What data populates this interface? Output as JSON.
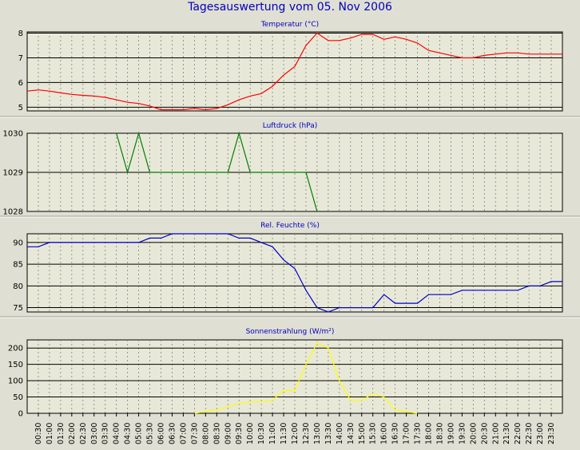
{
  "title": "Tagesauswertung vom 05. Nov 2006",
  "colors": {
    "background": "#e0dfd3",
    "plot_area": "#e8e8d8",
    "grid": "#808080",
    "title": "#0000c0",
    "temperature": "#ff0000",
    "pressure": "#008000",
    "humidity": "#0000cc",
    "radiation": "#ffff00"
  },
  "x_ticks": [
    "00:30",
    "01:00",
    "01:30",
    "02:00",
    "02:30",
    "03:00",
    "03:30",
    "04:00",
    "04:30",
    "05:00",
    "05:30",
    "06:00",
    "06:30",
    "07:00",
    "07:30",
    "08:00",
    "08:30",
    "09:00",
    "09:30",
    "10:00",
    "10:30",
    "11:00",
    "11:30",
    "12:00",
    "12:30",
    "13:00",
    "13:30",
    "14:00",
    "14:30",
    "15:00",
    "15:30",
    "16:00",
    "16:30",
    "17:00",
    "17:30",
    "18:00",
    "18:30",
    "19:00",
    "19:30",
    "20:00",
    "20:30",
    "21:00",
    "21:30",
    "22:00",
    "22:30",
    "23:00",
    "23:30"
  ],
  "chart_data": [
    {
      "type": "line",
      "title": "Temperatur (°C)",
      "series": [
        {
          "color": "#ff0000",
          "x": [
            "00:00",
            "00:30",
            "01:00",
            "01:30",
            "02:00",
            "02:30",
            "03:00",
            "03:30",
            "04:00",
            "04:30",
            "05:00",
            "05:30",
            "06:00",
            "06:30",
            "07:00",
            "07:30",
            "08:00",
            "08:30",
            "09:00",
            "09:30",
            "10:00",
            "10:30",
            "11:00",
            "11:30",
            "12:00",
            "12:30",
            "13:00",
            "13:30",
            "14:00",
            "14:30",
            "15:00",
            "15:30",
            "16:00",
            "16:30",
            "17:00",
            "17:30",
            "18:00",
            "18:30",
            "19:00",
            "19:30",
            "20:00",
            "20:30",
            "21:00",
            "21:30",
            "22:00",
            "22:30",
            "23:00",
            "23:30",
            "24:00"
          ],
          "values": [
            5.65,
            5.7,
            5.65,
            5.58,
            5.52,
            5.48,
            5.45,
            5.4,
            5.3,
            5.2,
            5.15,
            5.05,
            4.9,
            4.9,
            4.9,
            4.95,
            4.9,
            4.95,
            5.1,
            5.3,
            5.45,
            5.55,
            5.85,
            6.3,
            6.65,
            7.5,
            8.0,
            7.7,
            7.7,
            7.8,
            7.95,
            7.95,
            7.75,
            7.85,
            7.75,
            7.6,
            7.3,
            7.2,
            7.1,
            7.0,
            7.0,
            7.1,
            7.15,
            7.2,
            7.2,
            7.15,
            7.15,
            7.15,
            7.15
          ]
        }
      ],
      "yticks": [
        5,
        6,
        7,
        8
      ],
      "ylim": [
        4.85,
        8.05
      ],
      "grid": true
    },
    {
      "type": "line",
      "title": "Luftdruck (hPa)",
      "series": [
        {
          "color": "#008000",
          "x": [
            "04:00",
            "04:30",
            "05:00",
            "05:30",
            "06:00",
            "06:30",
            "07:00",
            "07:30",
            "08:00",
            "08:30",
            "09:00",
            "09:30",
            "10:00",
            "10:30",
            "11:00",
            "11:30",
            "12:00",
            "12:30",
            "13:00"
          ],
          "values": [
            1030,
            1029,
            1030,
            1029,
            1029,
            1029,
            1029,
            1029,
            1029,
            1029,
            1029,
            1030,
            1029,
            1029,
            1029,
            1029,
            1029,
            1029,
            1028
          ]
        }
      ],
      "yticks": [
        1028,
        1029,
        1030
      ],
      "ylim": [
        1028,
        1030
      ],
      "grid": true
    },
    {
      "type": "line",
      "title": "Rel. Feuchte (%)",
      "series": [
        {
          "color": "#0000cc",
          "x": [
            "00:00",
            "00:30",
            "01:00",
            "01:30",
            "02:00",
            "02:30",
            "03:00",
            "03:30",
            "04:00",
            "04:30",
            "05:00",
            "05:30",
            "06:00",
            "06:30",
            "07:00",
            "07:30",
            "08:00",
            "08:30",
            "09:00",
            "09:30",
            "10:00",
            "10:30",
            "11:00",
            "11:30",
            "12:00",
            "12:30",
            "13:00",
            "13:30",
            "14:00",
            "14:30",
            "15:00",
            "15:30",
            "16:00",
            "16:30",
            "17:00",
            "17:30",
            "18:00",
            "18:30",
            "19:00",
            "19:30",
            "20:00",
            "20:30",
            "21:00",
            "21:30",
            "22:00",
            "22:30",
            "23:00",
            "23:30",
            "24:00"
          ],
          "values": [
            89,
            89,
            90,
            90,
            90,
            90,
            90,
            90,
            90,
            90,
            90,
            91,
            91,
            92,
            92,
            92,
            92,
            92,
            92,
            91,
            91,
            90,
            89,
            86,
            84,
            79,
            75,
            74,
            75,
            75,
            75,
            75,
            78,
            76,
            76,
            76,
            78,
            78,
            78,
            79,
            79,
            79,
            79,
            79,
            79,
            80,
            80,
            81,
            81
          ]
        }
      ],
      "yticks": [
        75,
        80,
        85,
        90
      ],
      "ylim": [
        74,
        92
      ],
      "grid": true
    },
    {
      "type": "line",
      "title": "Sonnenstrahlung (W/m²)",
      "series": [
        {
          "color": "#ffff00",
          "x": [
            "07:30",
            "08:00",
            "08:30",
            "09:00",
            "09:30",
            "10:00",
            "10:30",
            "11:00",
            "11:30",
            "12:00",
            "12:30",
            "13:00",
            "13:30",
            "14:00",
            "14:30",
            "15:00",
            "15:30",
            "16:00",
            "16:30",
            "17:00",
            "17:30"
          ],
          "values": [
            0,
            5,
            10,
            20,
            30,
            35,
            35,
            40,
            70,
            70,
            150,
            215,
            200,
            100,
            40,
            40,
            60,
            50,
            10,
            5,
            0
          ]
        }
      ],
      "yticks": [
        0,
        50,
        100,
        150,
        200
      ],
      "ylim": [
        0,
        225
      ],
      "grid": true
    }
  ]
}
